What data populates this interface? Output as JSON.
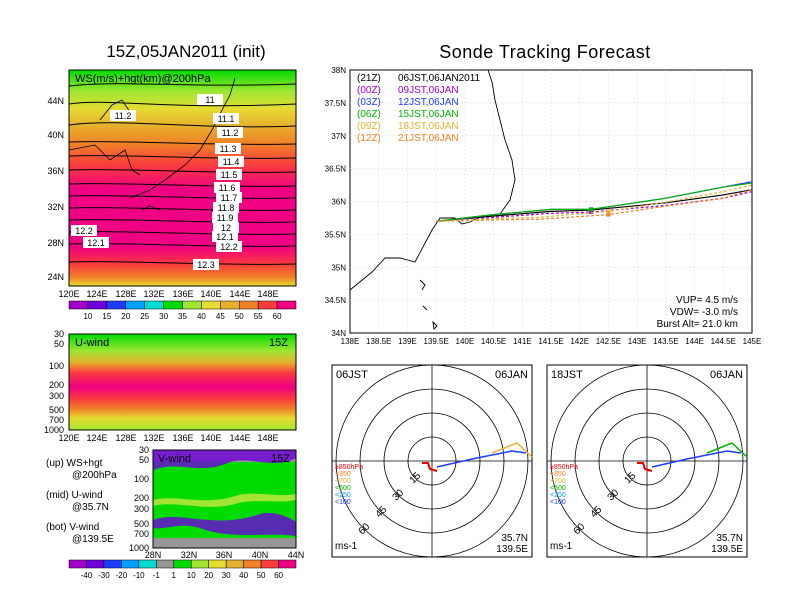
{
  "left_title": "15Z,05JAN2011 (init)",
  "right_title": "Sonde Tracking Forecast",
  "ws_map": {
    "label": "WS(m/s)+hgt(km)@200hPa",
    "lat_ticks": [
      "44N",
      "40N",
      "36N",
      "32N",
      "28N",
      "24N"
    ],
    "lon_ticks": [
      "120E",
      "124E",
      "128E",
      "132E",
      "136E",
      "140E",
      "144E",
      "148E"
    ],
    "contour_labels": [
      "11.2",
      "11",
      "11.1",
      "11.2",
      "11.3",
      "11.4",
      "11.5",
      "11.6",
      "11.7",
      "11.8",
      "11.9",
      "12",
      "12.1",
      "12.2",
      "12.1",
      "12.2",
      "12.3"
    ],
    "colorbar_labels": [
      "10",
      "15",
      "20",
      "25",
      "30",
      "35",
      "40",
      "45",
      "50",
      "55",
      "60"
    ],
    "colorbar_colors": [
      "#a000c8",
      "#6e00dc",
      "#1e3cff",
      "#00a0ff",
      "#00dcd2",
      "#00dc00",
      "#a0e632",
      "#e6dc32",
      "#e6af2d",
      "#f08228",
      "#fa3c3c",
      "#f00082"
    ]
  },
  "u_wind": {
    "label": "U-wind",
    "time": "15Z",
    "p_ticks": [
      "30",
      "50",
      "100",
      "200",
      "300",
      "500",
      "700",
      "1000"
    ],
    "lon_ticks": [
      "120E",
      "124E",
      "128E",
      "132E",
      "136E",
      "140E",
      "144E",
      "148E"
    ]
  },
  "v_wind": {
    "label": "V-wind",
    "time": "15Z",
    "p_ticks": [
      "30",
      "50",
      "100",
      "200",
      "300",
      "500",
      "700",
      "1000"
    ],
    "lat_ticks": [
      "28N",
      "32N",
      "36N",
      "40N",
      "44N"
    ],
    "colorbar_labels": [
      "-40",
      "-30",
      "-20",
      "-10",
      "-1",
      "1",
      "10",
      "20",
      "30",
      "40",
      "50",
      "60"
    ],
    "colorbar_colors": [
      "#a000c8",
      "#6e00dc",
      "#1e3cff",
      "#00a0ff",
      "#00dcd2",
      "#969696",
      "#00dc00",
      "#a0e632",
      "#e6dc32",
      "#e6af2d",
      "#f08228",
      "#fa3c3c",
      "#f00082"
    ]
  },
  "notes": [
    {
      "key": "(up)",
      "l1": "WS+hgt",
      "l2": "@200hPa"
    },
    {
      "key": "(mid)",
      "l1": "U-wind",
      "l2": "@35.7N"
    },
    {
      "key": "(bot)",
      "l1": "V-wind",
      "l2": "@139.5E"
    }
  ],
  "track_map": {
    "lat_ticks": [
      "38N",
      "37.5N",
      "37N",
      "36.5N",
      "36N",
      "35.5N",
      "35N",
      "34.5N",
      "34N"
    ],
    "lon_ticks": [
      "138E",
      "138.5E",
      "139E",
      "139.5E",
      "140E",
      "140.5E",
      "141E",
      "141.5E",
      "142E",
      "142.5E",
      "143E",
      "143.5E",
      "144E",
      "144.5E",
      "145E"
    ],
    "legend": [
      {
        "tag": "(21Z)",
        "time": "06JST,06JAN2011",
        "color": "#000000"
      },
      {
        "tag": "(00Z)",
        "time": "09JST,06JAN",
        "color": "#a000c8"
      },
      {
        "tag": "(03Z)",
        "time": "12JST,06JAN",
        "color": "#1e3cff"
      },
      {
        "tag": "(06Z)",
        "time": "15JST,06JAN",
        "color": "#00b400"
      },
      {
        "tag": "(09Z)",
        "time": "18JST,06JAN",
        "color": "#e6b432"
      },
      {
        "tag": "(12Z)",
        "time": "21JST,06JAN",
        "color": "#f08228"
      }
    ],
    "vup": "VUP= 4.5 m/s",
    "vdw": "VDW= -3.0 m/s",
    "burst": "Burst Alt= 21.0 km"
  },
  "polar_left": {
    "time": "06JST",
    "date": "06JAN",
    "ring_labels": [
      "15",
      "30",
      "45",
      "60"
    ],
    "legend": [
      {
        "text": "≥850hPa",
        "color": "#e60000"
      },
      {
        "text": "<850",
        "color": "#f08228"
      },
      {
        "text": "<700",
        "color": "#e6b432"
      },
      {
        "text": "<500",
        "color": "#00b400"
      },
      {
        "text": "<250",
        "color": "#00a0ff"
      },
      {
        "text": "<100",
        "color": "#1e3cff"
      }
    ],
    "unit": "ms-1",
    "lat": "35.7N",
    "lon": "139.5E"
  },
  "polar_right": {
    "time": "18JST",
    "date": "06JAN",
    "ring_labels": [
      "15",
      "30",
      "45",
      "60"
    ],
    "legend": [
      {
        "text": "≥850hPa",
        "color": "#e60000"
      },
      {
        "text": "<850",
        "color": "#f08228"
      },
      {
        "text": "<700",
        "color": "#e6b432"
      },
      {
        "text": "<500",
        "color": "#00b400"
      },
      {
        "text": "<250",
        "color": "#00a0ff"
      },
      {
        "text": "<100",
        "color": "#1e3cff"
      }
    ],
    "unit": "ms-1",
    "lat": "35.7N",
    "lon": "139.5E"
  },
  "chart_data": [
    {
      "type": "line",
      "title": "Sonde Tracking Forecast",
      "xlabel": "",
      "ylabel": "",
      "xlim": [
        138,
        145
      ],
      "ylim": [
        34,
        38
      ],
      "series": [
        {
          "name": "06JST,06JAN2011",
          "x": [
            139.5,
            140.5,
            141.5,
            142.2,
            143.5,
            144.5,
            145.0
          ],
          "y": [
            35.7,
            35.78,
            35.85,
            35.87,
            35.98,
            36.1,
            36.18
          ]
        },
        {
          "name": "09JST,06JAN",
          "x": [
            139.5,
            140.5,
            141.5,
            142.2,
            143.5,
            144.5,
            145.0
          ],
          "y": [
            35.7,
            35.76,
            35.82,
            35.84,
            35.94,
            36.05,
            36.15
          ]
        },
        {
          "name": "12JST,06JAN",
          "x": [
            139.5,
            140.5,
            141.5,
            142.2,
            143.5,
            144.5,
            145.0
          ],
          "y": [
            35.7,
            35.8,
            35.88,
            35.88,
            36.05,
            36.22,
            36.3
          ]
        },
        {
          "name": "15JST,06JAN",
          "x": [
            139.5,
            140.5,
            141.5,
            142.2,
            143.5,
            144.5,
            145.0
          ],
          "y": [
            35.7,
            35.8,
            35.88,
            35.88,
            36.05,
            36.22,
            36.28
          ]
        },
        {
          "name": "18JST,06JAN",
          "x": [
            139.5,
            140.5,
            141.3,
            142.5,
            143.5,
            144.5,
            145.0
          ],
          "y": [
            35.7,
            35.74,
            35.76,
            35.85,
            35.99,
            36.15,
            36.25
          ]
        },
        {
          "name": "21JST,06JAN",
          "x": [
            139.5,
            140.5,
            141.3,
            142.5,
            143.5,
            144.5,
            145.0
          ],
          "y": [
            35.7,
            35.72,
            35.73,
            35.8,
            35.93,
            36.05,
            36.18
          ]
        }
      ]
    }
  ]
}
